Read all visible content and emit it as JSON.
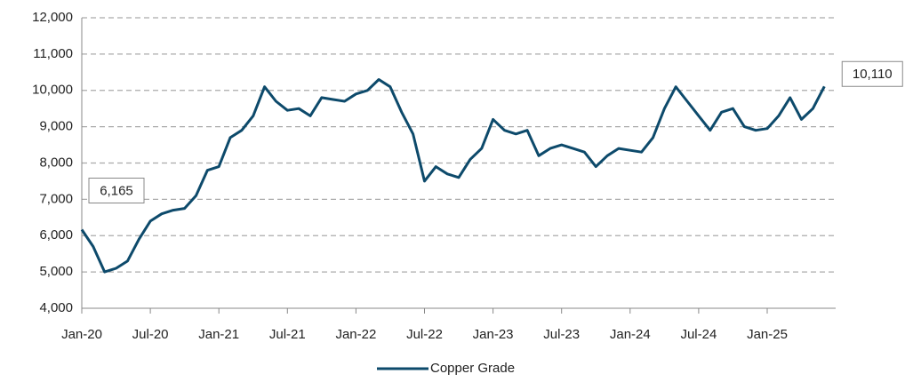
{
  "chart_data": {
    "type": "line",
    "categories": [
      "Jan-20",
      null,
      null,
      null,
      null,
      null,
      "Jul-20",
      null,
      null,
      null,
      null,
      null,
      "Jan-21",
      null,
      null,
      null,
      null,
      null,
      "Jul-21",
      null,
      null,
      null,
      null,
      null,
      "Jan-22",
      null,
      null,
      null,
      null,
      null,
      "Jul-22",
      null,
      null,
      null,
      null,
      null,
      "Jan-23",
      null,
      null,
      null,
      null,
      null,
      "Jul-23",
      null,
      null,
      null,
      null,
      null,
      "Jan-24",
      null,
      null,
      null,
      null,
      null,
      "Jul-24",
      null,
      null,
      null,
      null,
      null,
      "Jan-25",
      null,
      null,
      null,
      null,
      null
    ],
    "series": [
      {
        "name": "Copper Grade",
        "color": "#0d4a6b",
        "values": [
          6165,
          5700,
          5000,
          5100,
          5300,
          5900,
          6400,
          6600,
          6700,
          6750,
          7100,
          7800,
          7900,
          8700,
          8900,
          9300,
          10100,
          9700,
          9450,
          9500,
          9300,
          9800,
          9750,
          9700,
          9900,
          10000,
          10300,
          10100,
          9400,
          8800,
          7500,
          7900,
          7700,
          7600,
          8100,
          8400,
          9200,
          8900,
          8800,
          8900,
          8200,
          8400,
          8500,
          8400,
          8300,
          7900,
          8200,
          8400,
          8350,
          8300,
          8700,
          9500,
          10100,
          9700,
          9300,
          8900,
          9400,
          9500,
          9000,
          8900,
          8950,
          9300,
          9800,
          9200,
          9500,
          10110
        ]
      }
    ],
    "annotations": [
      {
        "value": 6165,
        "label": "6,165"
      },
      {
        "value": 10110,
        "label": "10,110"
      }
    ],
    "ylim": [
      4000,
      12000
    ],
    "yticks": [
      {
        "value": 4000,
        "label": "4,000"
      },
      {
        "value": 5000,
        "label": "5,000"
      },
      {
        "value": 6000,
        "label": "6,000"
      },
      {
        "value": 7000,
        "label": "7,000"
      },
      {
        "value": 8000,
        "label": "8,000"
      },
      {
        "value": 9000,
        "label": "9,000"
      },
      {
        "value": 10000,
        "label": "10,000"
      },
      {
        "value": 11000,
        "label": "11,000"
      },
      {
        "value": 12000,
        "label": "12,000"
      }
    ],
    "grid": true,
    "legend": "bottom"
  }
}
